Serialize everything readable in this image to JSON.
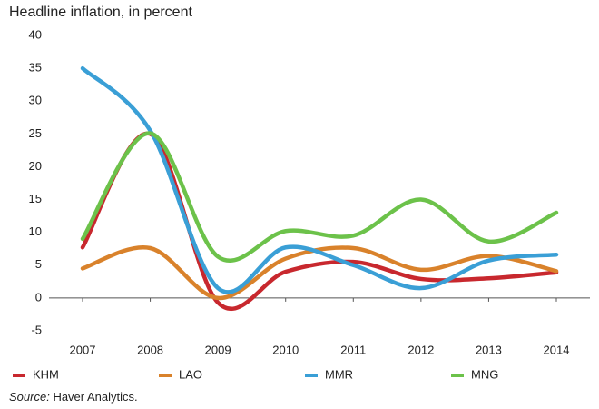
{
  "chart_data": {
    "type": "line",
    "title": "Headline inflation, in percent",
    "categories": [
      "2007",
      "2008",
      "2009",
      "2010",
      "2011",
      "2012",
      "2013",
      "2014"
    ],
    "series": [
      {
        "name": "KHM",
        "color": "#c8282e",
        "values": [
          7.7,
          25.0,
          -0.7,
          4.0,
          5.5,
          2.9,
          3.0,
          3.9
        ]
      },
      {
        "name": "LAO",
        "color": "#d9822b",
        "values": [
          4.5,
          7.6,
          0.0,
          6.0,
          7.6,
          4.3,
          6.4,
          4.1
        ]
      },
      {
        "name": "MMR",
        "color": "#3a9fd6",
        "values": [
          35.0,
          25.5,
          1.5,
          7.7,
          5.0,
          1.5,
          5.7,
          6.6
        ]
      },
      {
        "name": "MNG",
        "color": "#6cc24a",
        "values": [
          9.0,
          25.1,
          6.3,
          10.2,
          9.5,
          15.0,
          8.6,
          13.0
        ]
      }
    ],
    "ylim": [
      -5,
      40
    ],
    "yticks": [
      -5,
      0,
      5,
      10,
      15,
      20,
      25,
      30,
      35,
      40
    ],
    "source_label": "Source:",
    "source": "Haver Analytics."
  }
}
